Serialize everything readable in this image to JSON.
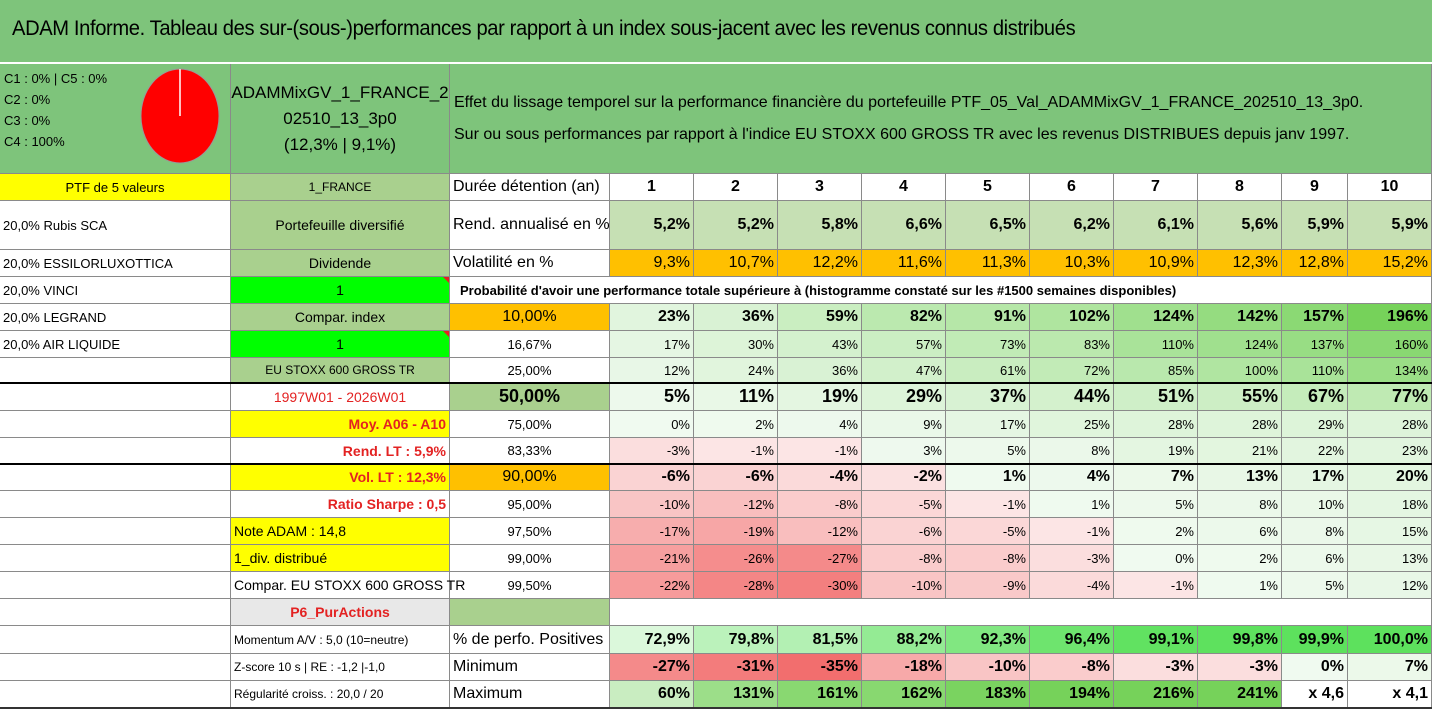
{
  "title": "ADAM Informe. Tableau des sur-(sous-)performances par rapport à un index sous-jacent avec les revenus connus distribués",
  "legend": {
    "c1c5": "C1 : 0% | C5 : 0%",
    "c2": "C2 : 0%",
    "c3": "C3 : 0%",
    "c4": "C4 : 100%"
  },
  "ticker": {
    "line1": "ADAMMixGV_1_FRANCE_2",
    "line2": "02510_13_3p0",
    "line3": "(12,3% | 9,1%)"
  },
  "description": {
    "line1": "Effet du lissage temporel sur la performance financière du portefeuille PTF_05_Val_ADAMMixGV_1_FRANCE_202510_13_3p0.",
    "line2": "Sur ou sous performances par rapport à l'indice EU STOXX 600 GROSS TR avec les revenus DISTRIBUES depuis janv 1997."
  },
  "left_col": [
    "PTF de 5 valeurs",
    "20,0% Rubis SCA",
    "20,0% ESSILORLUXOTTICA",
    "20,0% VINCI",
    "20,0% LEGRAND",
    "20,0% AIR LIQUIDE"
  ],
  "mid_col": {
    "country": "1_FRANCE",
    "portfolio_type": "Portefeuille diversifié",
    "dividend_label": "Dividende",
    "dividend_value": "1",
    "compar_label": "Compar. index",
    "compar_value": "1",
    "index_name": "EU STOXX 600 GROSS TR",
    "period": "1997W01 - 2026W01",
    "moy": "Moy. A06 - A10",
    "rend_lt": "Rend. LT : 5,9%",
    "vol_lt": "Vol. LT : 12,3%",
    "sharpe": "Ratio Sharpe : 0,5",
    "note": "Note ADAM : 14,8",
    "div_distrib": "1_div. distribué",
    "compar_full": "Compar. EU STOXX 600 GROSS TR",
    "p6": "P6_PurActions",
    "momentum": "Momentum A/V : 5,0 (10=neutre)",
    "zscore": "Z-score 10 s | RE : -1,2 |-1,0",
    "regularite": "Régularité croiss. : 20,0 / 20"
  },
  "table": {
    "duration_label": "Durée détention (an)",
    "years": [
      "1",
      "2",
      "3",
      "4",
      "5",
      "6",
      "7",
      "8",
      "9",
      "10"
    ],
    "rend_label": "Rend. annualisé en %",
    "rend": [
      "5,2%",
      "5,2%",
      "5,8%",
      "6,6%",
      "6,5%",
      "6,2%",
      "6,1%",
      "5,6%",
      "5,9%",
      "5,9%"
    ],
    "vol_label": "Volatilité en %",
    "vol": [
      "9,3%",
      "10,7%",
      "12,2%",
      "11,6%",
      "11,3%",
      "10,3%",
      "10,9%",
      "12,3%",
      "12,8%",
      "15,2%"
    ],
    "prob_title": "Probabilité d'avoir une performance totale supérieure à (histogramme constaté sur les #1500 semaines disponibles)",
    "quantiles": [
      {
        "label": "10,00%",
        "values": [
          "23%",
          "36%",
          "59%",
          "82%",
          "91%",
          "102%",
          "124%",
          "142%",
          "157%",
          "196%"
        ],
        "bold": true
      },
      {
        "label": "16,67%",
        "values": [
          "17%",
          "30%",
          "43%",
          "57%",
          "73%",
          "83%",
          "110%",
          "124%",
          "137%",
          "160%"
        ],
        "bold": false
      },
      {
        "label": "25,00%",
        "values": [
          "12%",
          "24%",
          "36%",
          "47%",
          "61%",
          "72%",
          "85%",
          "100%",
          "110%",
          "134%"
        ],
        "bold": false
      },
      {
        "label": "50,00%",
        "values": [
          "5%",
          "11%",
          "19%",
          "29%",
          "37%",
          "44%",
          "51%",
          "55%",
          "67%",
          "77%"
        ],
        "bold": true
      },
      {
        "label": "75,00%",
        "values": [
          "0%",
          "2%",
          "4%",
          "9%",
          "17%",
          "25%",
          "28%",
          "28%",
          "29%",
          "28%"
        ],
        "bold": false
      },
      {
        "label": "83,33%",
        "values": [
          "-3%",
          "-1%",
          "-1%",
          "3%",
          "5%",
          "8%",
          "19%",
          "21%",
          "22%",
          "23%"
        ],
        "bold": false
      },
      {
        "label": "90,00%",
        "values": [
          "-6%",
          "-6%",
          "-4%",
          "-2%",
          "1%",
          "4%",
          "7%",
          "13%",
          "17%",
          "20%"
        ],
        "bold": true
      },
      {
        "label": "95,00%",
        "values": [
          "-10%",
          "-12%",
          "-8%",
          "-5%",
          "-1%",
          "1%",
          "5%",
          "8%",
          "10%",
          "18%"
        ],
        "bold": false
      },
      {
        "label": "97,50%",
        "values": [
          "-17%",
          "-19%",
          "-12%",
          "-6%",
          "-5%",
          "-1%",
          "2%",
          "6%",
          "8%",
          "15%"
        ],
        "bold": false
      },
      {
        "label": "99,00%",
        "values": [
          "-21%",
          "-26%",
          "-27%",
          "-8%",
          "-8%",
          "-3%",
          "0%",
          "2%",
          "6%",
          "13%"
        ],
        "bold": false
      },
      {
        "label": "99,50%",
        "values": [
          "-22%",
          "-28%",
          "-30%",
          "-10%",
          "-9%",
          "-4%",
          "-1%",
          "1%",
          "5%",
          "12%"
        ],
        "bold": false
      }
    ],
    "pos_label": "% de perfo. Positives",
    "pos": [
      "72,9%",
      "79,8%",
      "81,5%",
      "88,2%",
      "92,3%",
      "96,4%",
      "99,1%",
      "99,8%",
      "99,9%",
      "100,0%"
    ],
    "min_label": "Minimum",
    "min": [
      "-27%",
      "-31%",
      "-35%",
      "-18%",
      "-10%",
      "-8%",
      "-3%",
      "-3%",
      "0%",
      "7%"
    ],
    "max_label": "Maximum",
    "max": [
      "60%",
      "131%",
      "161%",
      "162%",
      "183%",
      "194%",
      "216%",
      "241%",
      "x 4,6",
      "x 4,1"
    ]
  },
  "colors": {
    "header_green": "#7ec47b",
    "yellow": "#ffff00",
    "orange": "#ffc000",
    "bright_green": "#00ff00",
    "red_text": "#e32222",
    "pie": "#ff0000"
  },
  "pie": {
    "c1": 0,
    "c2": 0,
    "c3": 0,
    "c4": 100,
    "c5": 0
  }
}
